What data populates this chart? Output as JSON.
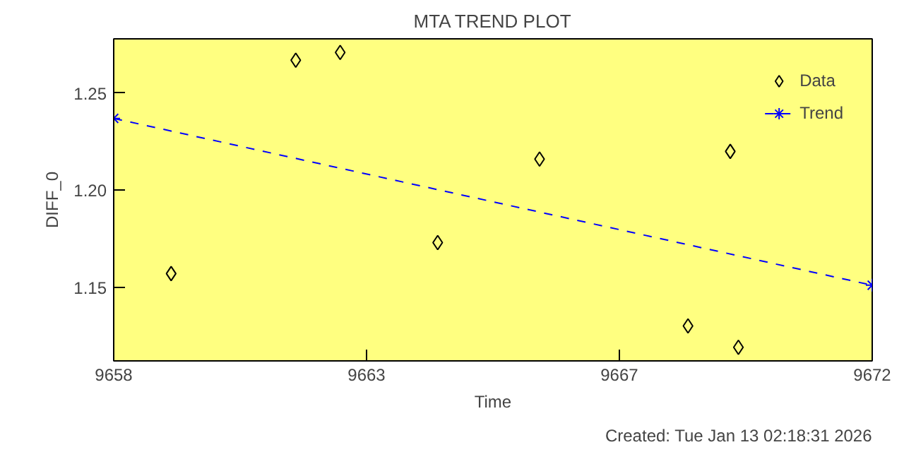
{
  "chart_data": {
    "type": "scatter",
    "title": "MTA TREND PLOT",
    "xlabel": "Time",
    "ylabel": "DIFF_0",
    "annotations": [
      "Created: Tue Jan 13 02:18:31 2026"
    ],
    "xlim": [
      9658,
      9672
    ],
    "ylim": [
      1.112,
      1.278
    ],
    "xticks": [
      9658,
      {
        "value": 9662.667,
        "label": "9663"
      },
      {
        "value": 9667.333,
        "label": "9667"
      },
      9672
    ],
    "yticks": [
      1.15,
      {
        "value": 1.2,
        "label": "1.20"
      },
      1.25
    ],
    "grid": false,
    "legend": "top right",
    "series": [
      {
        "name": "Data",
        "marker": "diamond",
        "color": "#000000",
        "x": [
          9659.06,
          9661.36,
          9662.18,
          9663.98,
          9665.86,
          9668.6,
          9669.38,
          9669.53
        ],
        "values": [
          1.157,
          1.267,
          1.271,
          1.173,
          1.216,
          1.13,
          1.22,
          1.119
        ]
      },
      {
        "name": "Trend",
        "type": "line",
        "line_style": "dashed",
        "marker": "cross",
        "color": "#0000ff",
        "x": [
          9658,
          9672
        ],
        "values": [
          1.237,
          1.151
        ]
      }
    ]
  }
}
